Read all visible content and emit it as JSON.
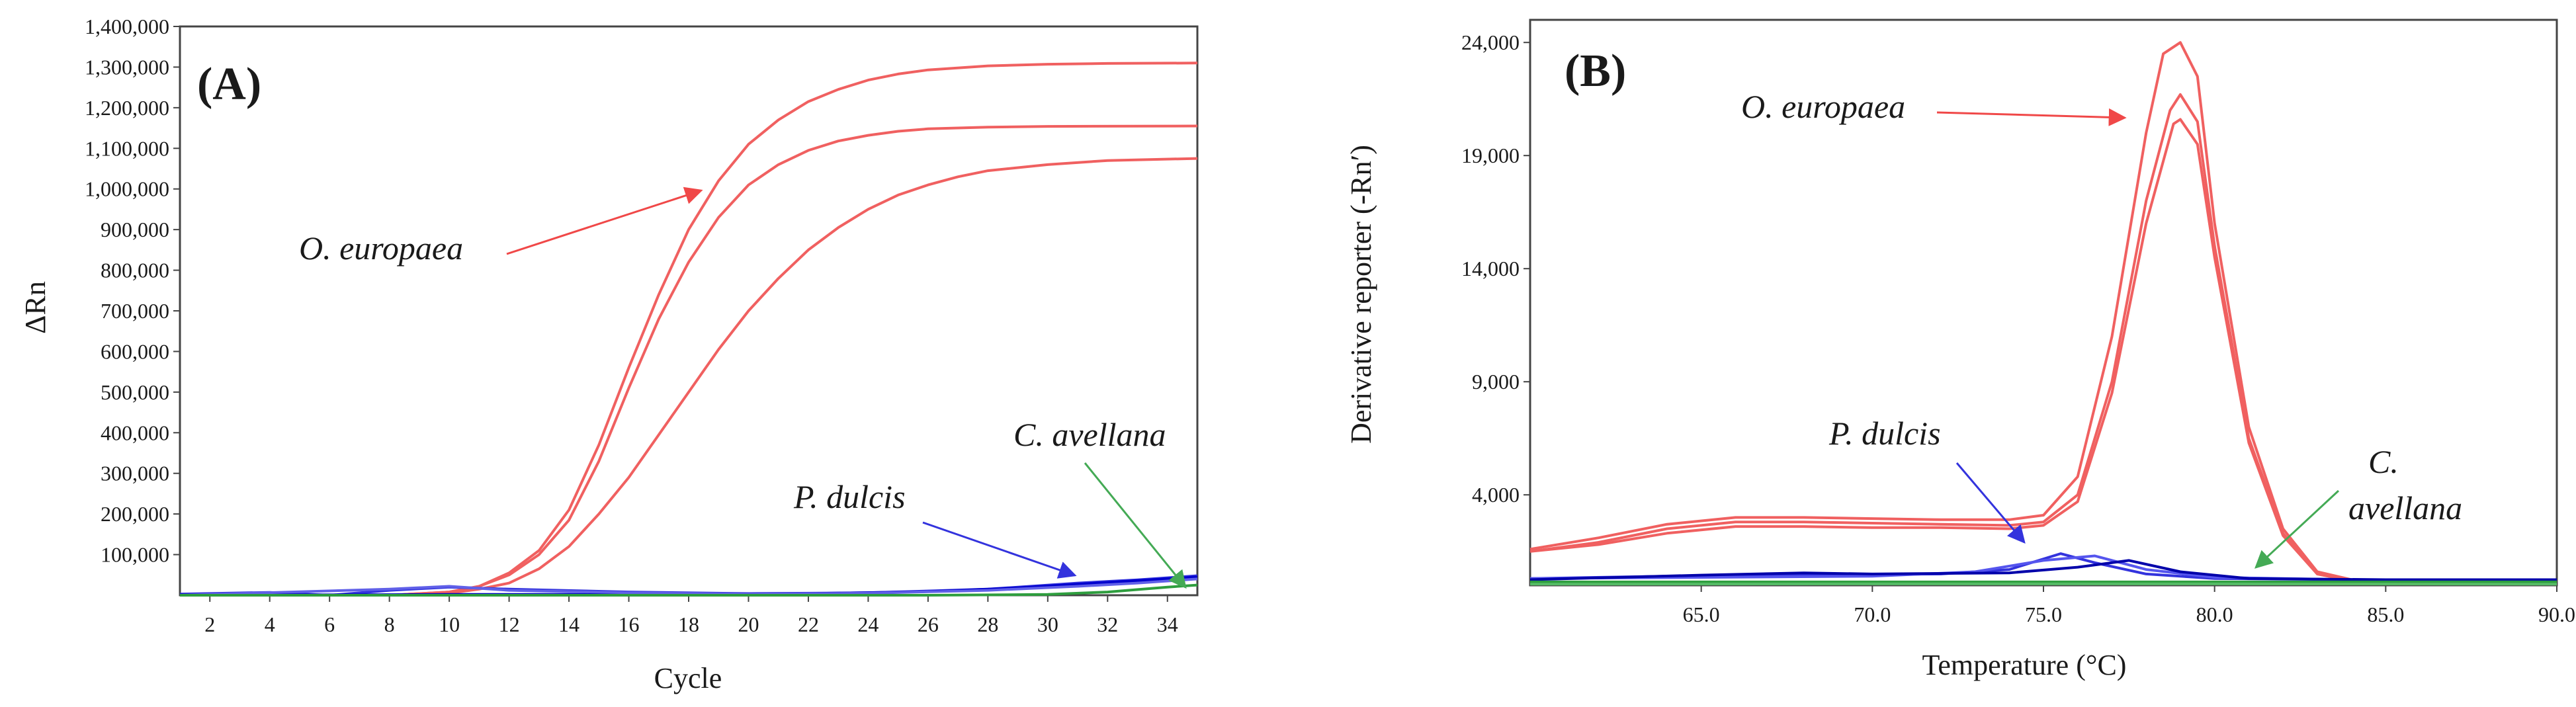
{
  "chart_data": [
    {
      "panel_label": "(A)",
      "type": "line",
      "xlabel": "Cycle",
      "ylabel": "ΔRn",
      "xlim": [
        1,
        35
      ],
      "ylim": [
        0,
        1400000
      ],
      "x_ticks": [
        2,
        4,
        6,
        8,
        10,
        12,
        14,
        16,
        18,
        20,
        22,
        24,
        26,
        28,
        30,
        32,
        34
      ],
      "x_tick_labels": [
        "2",
        "4",
        "6",
        "8",
        "10",
        "12",
        "14",
        "16",
        "18",
        "20",
        "22",
        "24",
        "26",
        "28",
        "30",
        "32",
        "34"
      ],
      "y_ticks": [
        100000,
        200000,
        300000,
        400000,
        500000,
        600000,
        700000,
        800000,
        900000,
        1000000,
        1100000,
        1200000,
        1300000,
        1400000
      ],
      "y_tick_labels": [
        "100,000",
        "200,000",
        "300,000",
        "400,000",
        "500,000",
        "600,000",
        "700,000",
        "800,000",
        "900,000",
        "1,000,000",
        "1,100,000",
        "1,200,000",
        "1,300,000",
        "1,400,000"
      ],
      "series": [
        {
          "name": "O. europaea 1",
          "color": "#f06060",
          "points": [
            [
              1,
              0
            ],
            [
              8,
              0
            ],
            [
              10,
              8000
            ],
            [
              11,
              22000
            ],
            [
              12,
              55000
            ],
            [
              13,
              110000
            ],
            [
              14,
              210000
            ],
            [
              15,
              370000
            ],
            [
              16,
              560000
            ],
            [
              17,
              740000
            ],
            [
              18,
              900000
            ],
            [
              19,
              1020000
            ],
            [
              20,
              1110000
            ],
            [
              21,
              1170000
            ],
            [
              22,
              1215000
            ],
            [
              23,
              1245000
            ],
            [
              24,
              1268000
            ],
            [
              25,
              1283000
            ],
            [
              26,
              1293000
            ],
            [
              28,
              1303000
            ],
            [
              30,
              1307000
            ],
            [
              32,
              1309000
            ],
            [
              35,
              1310000
            ]
          ]
        },
        {
          "name": "O. europaea 2",
          "color": "#f06060",
          "points": [
            [
              1,
              0
            ],
            [
              8,
              0
            ],
            [
              10,
              8000
            ],
            [
              11,
              22000
            ],
            [
              12,
              50000
            ],
            [
              13,
              100000
            ],
            [
              14,
              185000
            ],
            [
              15,
              330000
            ],
            [
              16,
              510000
            ],
            [
              17,
              680000
            ],
            [
              18,
              820000
            ],
            [
              19,
              930000
            ],
            [
              20,
              1010000
            ],
            [
              21,
              1060000
            ],
            [
              22,
              1095000
            ],
            [
              23,
              1118000
            ],
            [
              24,
              1132000
            ],
            [
              25,
              1142000
            ],
            [
              26,
              1148000
            ],
            [
              28,
              1152000
            ],
            [
              30,
              1154000
            ],
            [
              35,
              1155000
            ]
          ]
        },
        {
          "name": "O. europaea 3",
          "color": "#f06060",
          "points": [
            [
              1,
              0
            ],
            [
              8,
              0
            ],
            [
              10,
              5000
            ],
            [
              11,
              15000
            ],
            [
              12,
              30000
            ],
            [
              13,
              65000
            ],
            [
              14,
              120000
            ],
            [
              15,
              200000
            ],
            [
              16,
              290000
            ],
            [
              17,
              395000
            ],
            [
              18,
              500000
            ],
            [
              19,
              605000
            ],
            [
              20,
              700000
            ],
            [
              21,
              780000
            ],
            [
              22,
              850000
            ],
            [
              23,
              905000
            ],
            [
              24,
              950000
            ],
            [
              25,
              985000
            ],
            [
              26,
              1010000
            ],
            [
              27,
              1030000
            ],
            [
              28,
              1045000
            ],
            [
              30,
              1060000
            ],
            [
              32,
              1070000
            ],
            [
              35,
              1075000
            ]
          ]
        },
        {
          "name": "P. dulcis 1",
          "color": "#3333dd",
          "points": [
            [
              1,
              3000
            ],
            [
              4,
              7000
            ],
            [
              6,
              0
            ],
            [
              8,
              12000
            ],
            [
              10,
              20000
            ],
            [
              12,
              15000
            ],
            [
              16,
              8000
            ],
            [
              20,
              4000
            ],
            [
              24,
              6000
            ],
            [
              28,
              15000
            ],
            [
              31,
              30000
            ],
            [
              33,
              38000
            ],
            [
              35,
              48000
            ]
          ]
        },
        {
          "name": "P. dulcis 2",
          "color": "#0000cc",
          "points": [
            [
              1,
              1000
            ],
            [
              6,
              1000
            ],
            [
              10,
              2000
            ],
            [
              14,
              2000
            ],
            [
              18,
              3000
            ],
            [
              22,
              4000
            ],
            [
              26,
              9000
            ],
            [
              29,
              18000
            ],
            [
              31,
              27000
            ],
            [
              33,
              36000
            ],
            [
              35,
              45000
            ]
          ]
        },
        {
          "name": "P. dulcis 3",
          "color": "#6060e8",
          "points": [
            [
              1,
              0
            ],
            [
              8,
              15000
            ],
            [
              10,
              22000
            ],
            [
              12,
              12000
            ],
            [
              16,
              6000
            ],
            [
              20,
              3000
            ],
            [
              24,
              5000
            ],
            [
              28,
              12000
            ],
            [
              31,
              22000
            ],
            [
              33,
              30000
            ],
            [
              35,
              40000
            ]
          ]
        },
        {
          "name": "C. avellana 1",
          "color": "#2e9e3e",
          "points": [
            [
              1,
              0
            ],
            [
              10,
              0
            ],
            [
              20,
              0
            ],
            [
              26,
              0
            ],
            [
              30,
              2000
            ],
            [
              32,
              8000
            ],
            [
              34,
              20000
            ],
            [
              35,
              25000
            ]
          ]
        }
      ],
      "annotations": [
        {
          "text": "O. europaea",
          "color": "#f06060",
          "arrow_to_data": [
            18.5,
            1000000
          ]
        },
        {
          "text": "P. dulcis",
          "color": "#5555ee",
          "arrow_to_data": [
            30.5,
            30000
          ]
        },
        {
          "text": "C. avellana",
          "color": "#55aa66",
          "arrow_to_data": [
            34.5,
            0
          ]
        }
      ]
    },
    {
      "panel_label": "(B)",
      "type": "line",
      "xlabel": "Temperature (°C)",
      "ylabel": "Derivative reporter (-Rn′)",
      "xlim": [
        60,
        90
      ],
      "ylim": [
        0,
        25000
      ],
      "x_ticks": [
        65,
        70,
        75,
        80,
        85,
        90
      ],
      "x_tick_labels": [
        "65.0",
        "70.0",
        "75.0",
        "80.0",
        "85.0",
        "90.0"
      ],
      "y_ticks": [
        4000,
        9000,
        14000,
        19000,
        24000
      ],
      "y_tick_labels": [
        "4,000",
        "9,000",
        "14,000",
        "19,000",
        "24,000"
      ],
      "series": [
        {
          "name": "O. europaea 1",
          "color": "#f06060",
          "points": [
            [
              60,
              1600
            ],
            [
              62,
              2100
            ],
            [
              64,
              2700
            ],
            [
              66,
              3000
            ],
            [
              68,
              3000
            ],
            [
              70,
              2950
            ],
            [
              72,
              2900
            ],
            [
              74,
              2900
            ],
            [
              75,
              3100
            ],
            [
              76,
              4800
            ],
            [
              77,
              11000
            ],
            [
              78,
              20000
            ],
            [
              78.5,
              23500
            ],
            [
              79,
              24000
            ],
            [
              79.5,
              22500
            ],
            [
              80,
              16000
            ],
            [
              81,
              7000
            ],
            [
              82,
              2500
            ],
            [
              83,
              600
            ],
            [
              84,
              250
            ],
            [
              86,
              100
            ],
            [
              90,
              100
            ]
          ]
        },
        {
          "name": "O. europaea 2",
          "color": "#f06060",
          "points": [
            [
              60,
              1500
            ],
            [
              62,
              1900
            ],
            [
              64,
              2500
            ],
            [
              66,
              2800
            ],
            [
              68,
              2800
            ],
            [
              70,
              2750
            ],
            [
              72,
              2700
            ],
            [
              74,
              2650
            ],
            [
              75,
              2800
            ],
            [
              76,
              4000
            ],
            [
              77,
              9000
            ],
            [
              78,
              17000
            ],
            [
              78.7,
              21000
            ],
            [
              79,
              21700
            ],
            [
              79.5,
              20500
            ],
            [
              80,
              15000
            ],
            [
              81,
              6500
            ],
            [
              82,
              2300
            ],
            [
              83,
              500
            ],
            [
              84,
              200
            ],
            [
              86,
              100
            ],
            [
              90,
              100
            ]
          ]
        },
        {
          "name": "O. europaea 3",
          "color": "#f06060",
          "points": [
            [
              60,
              1500
            ],
            [
              62,
              1800
            ],
            [
              64,
              2300
            ],
            [
              66,
              2600
            ],
            [
              68,
              2600
            ],
            [
              70,
              2550
            ],
            [
              72,
              2550
            ],
            [
              74,
              2500
            ],
            [
              75,
              2650
            ],
            [
              76,
              3700
            ],
            [
              77,
              8500
            ],
            [
              78,
              16000
            ],
            [
              78.8,
              20400
            ],
            [
              79,
              20600
            ],
            [
              79.5,
              19500
            ],
            [
              80,
              14500
            ],
            [
              81,
              6300
            ],
            [
              82,
              2200
            ],
            [
              83,
              500
            ],
            [
              84,
              200
            ],
            [
              86,
              100
            ],
            [
              90,
              100
            ]
          ]
        },
        {
          "name": "P. dulcis 1",
          "color": "#3333dd",
          "points": [
            [
              60,
              300
            ],
            [
              64,
              400
            ],
            [
              68,
              450
            ],
            [
              72,
              500
            ],
            [
              74,
              700
            ],
            [
              75.5,
              1400
            ],
            [
              76.5,
              1000
            ],
            [
              78,
              500
            ],
            [
              80,
              300
            ],
            [
              84,
              250
            ],
            [
              90,
              250
            ]
          ]
        },
        {
          "name": "P. dulcis 2",
          "color": "#5555ee",
          "points": [
            [
              60,
              300
            ],
            [
              65,
              350
            ],
            [
              70,
              400
            ],
            [
              73,
              600
            ],
            [
              75,
              1100
            ],
            [
              76.5,
              1300
            ],
            [
              78,
              700
            ],
            [
              80,
              350
            ],
            [
              84,
              250
            ],
            [
              90,
              250
            ]
          ]
        },
        {
          "name": "P. dulcis 3",
          "color": "#0000aa",
          "points": [
            [
              60,
              250
            ],
            [
              65,
              450
            ],
            [
              68,
              550
            ],
            [
              70,
              500
            ],
            [
              74,
              550
            ],
            [
              76,
              800
            ],
            [
              77.5,
              1100
            ],
            [
              79,
              600
            ],
            [
              81,
              300
            ],
            [
              85,
              250
            ],
            [
              90,
              250
            ]
          ]
        },
        {
          "name": "C. avellana 1",
          "color": "#2e9e3e",
          "points": [
            [
              60,
              150
            ],
            [
              70,
              150
            ],
            [
              80,
              150
            ],
            [
              90,
              150
            ]
          ]
        },
        {
          "name": "C. avellana 2",
          "color": "#55bb66",
          "points": [
            [
              60,
              50
            ],
            [
              70,
              60
            ],
            [
              80,
              60
            ],
            [
              90,
              50
            ]
          ]
        }
      ],
      "annotations": [
        {
          "text": "O. europaea",
          "color": "#f06060",
          "arrow_to_data": [
            77.7,
            20800
          ]
        },
        {
          "text": "P. dulcis",
          "color": "#5555ee",
          "arrow_to_data": [
            74.7,
            1600
          ]
        },
        {
          "text": "C.",
          "color": "#55aa66",
          "arrow_to_data": [
            80.9,
            600
          ]
        },
        {
          "text": "avellana",
          "color": "#55aa66",
          "arrow_to_data": null
        }
      ]
    }
  ]
}
